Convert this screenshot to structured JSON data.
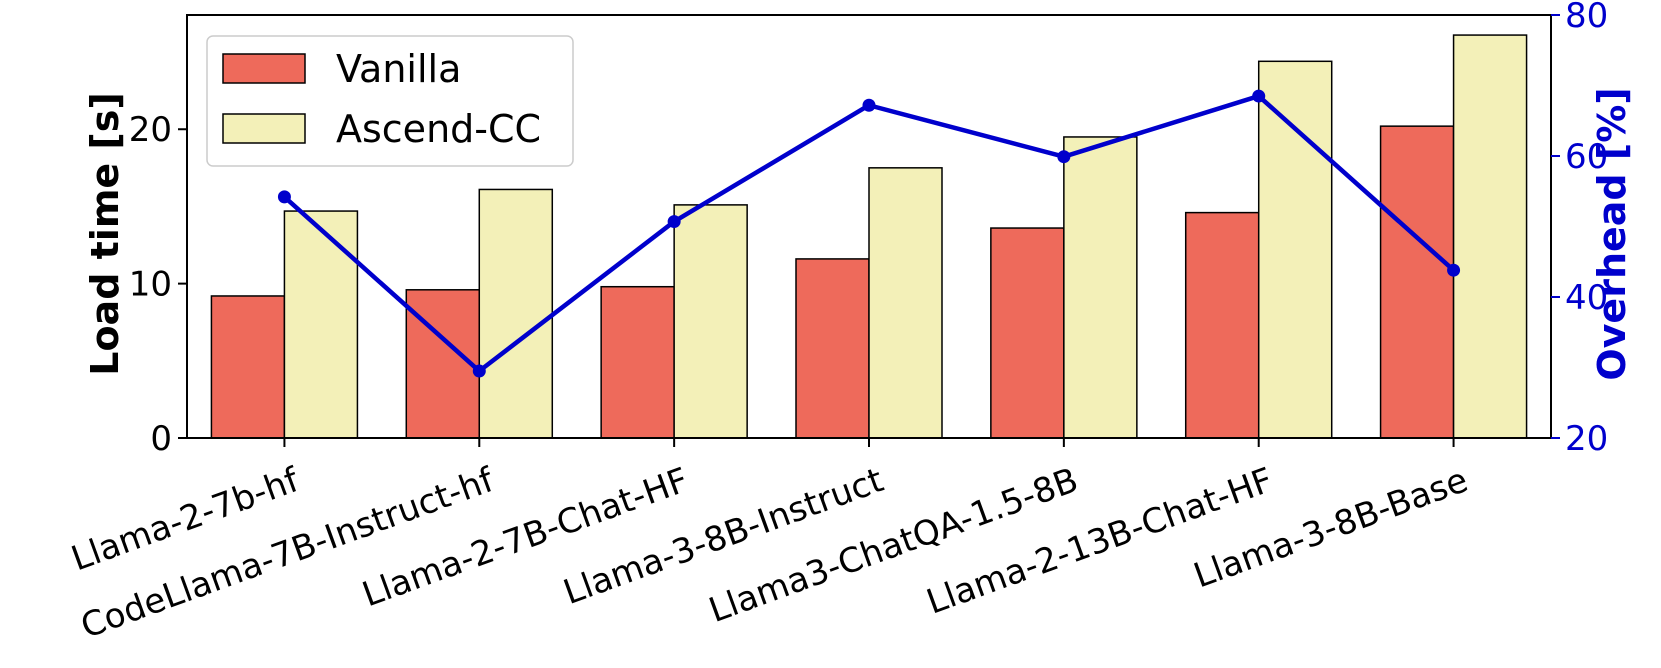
{
  "chart_data": {
    "type": "bar",
    "categories": [
      "Llama-2-7b-hf",
      "CodeLlama-7B-Instruct-hf",
      "Llama-2-7B-Chat-HF",
      "Llama-3-8B-Instruct",
      "Llama3-ChatQA-1.5-8B",
      "Llama-2-13B-Chat-HF",
      "Llama-3-8B-Base"
    ],
    "series": [
      {
        "name": "Vanilla",
        "color": "#ee6a5b",
        "values": [
          9.2,
          9.6,
          9.8,
          11.6,
          13.6,
          14.6,
          20.2
        ]
      },
      {
        "name": "Ascend-CC",
        "color": "#f3f0b8",
        "values": [
          14.7,
          16.1,
          15.1,
          17.5,
          19.5,
          24.4,
          26.1
        ]
      }
    ],
    "line_series": {
      "name": "Overhead",
      "color": "#0000cc",
      "axis": "right",
      "values": [
        54.2,
        29.5,
        50.7,
        67.2,
        59.9,
        68.5,
        43.8
      ]
    },
    "ylabel": "Load time [s]",
    "ylabel_right": "Overhead [%]",
    "ylim": [
      0,
      27.4
    ],
    "ylim_right": [
      20,
      80
    ],
    "yticks": [
      0,
      10,
      20
    ],
    "yticks_right": [
      20,
      40,
      60,
      80
    ],
    "legend_position": "top-left",
    "grid": false
  }
}
